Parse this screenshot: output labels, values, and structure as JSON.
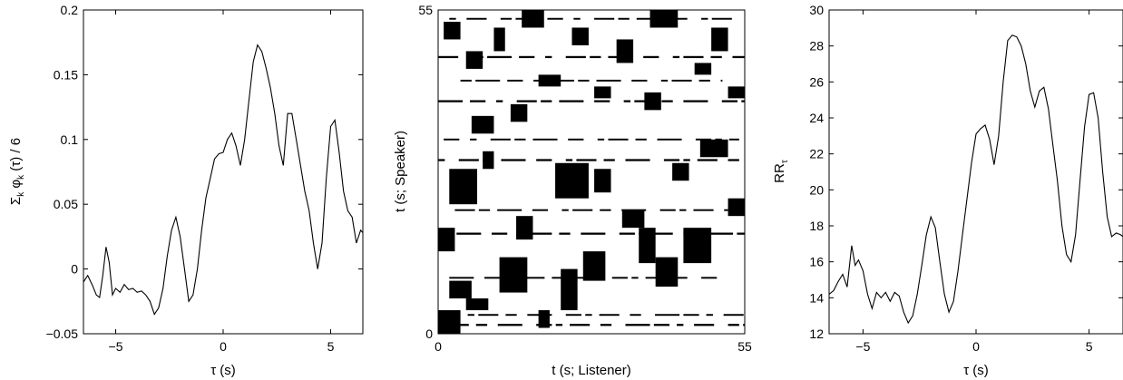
{
  "chart_data": [
    {
      "type": "line",
      "xlabel": "τ (s)",
      "ylabel": "Σk φk (τ) / 6",
      "xlim": [
        -6.5,
        6.5
      ],
      "ylim": [
        -0.05,
        0.2
      ],
      "xticks": [
        -5,
        0,
        5
      ],
      "xtick_labels": [
        "−5",
        "0",
        "5"
      ],
      "yticks": [
        -0.05,
        0,
        0.05,
        0.1,
        0.15,
        0.2
      ],
      "ytick_labels": [
        "−0.05",
        "0",
        "0.05",
        "0.1",
        "0.15",
        "0.2"
      ],
      "color": "#000000",
      "series": [
        {
          "x": [
            -6.5,
            -6.3,
            -6.1,
            -5.9,
            -5.75,
            -5.6,
            -5.45,
            -5.3,
            -5.15,
            -5.0,
            -4.8,
            -4.6,
            -4.4,
            -4.2,
            -4.0,
            -3.8,
            -3.6,
            -3.4,
            -3.2,
            -3.0,
            -2.8,
            -2.6,
            -2.4,
            -2.2,
            -2.0,
            -1.8,
            -1.6,
            -1.4,
            -1.2,
            -1.0,
            -0.8,
            -0.6,
            -0.4,
            -0.2,
            0.0,
            0.2,
            0.4,
            0.6,
            0.8,
            1.0,
            1.2,
            1.4,
            1.6,
            1.8,
            2.0,
            2.2,
            2.4,
            2.6,
            2.8,
            3.0,
            3.2,
            3.4,
            3.6,
            3.8,
            4.0,
            4.2,
            4.4,
            4.6,
            4.8,
            5.0,
            5.2,
            5.4,
            5.6,
            5.8,
            6.0,
            6.2,
            6.4,
            6.5
          ],
          "y": [
            -0.01,
            -0.005,
            -0.012,
            -0.02,
            -0.022,
            -0.005,
            0.017,
            0.005,
            -0.02,
            -0.015,
            -0.018,
            -0.012,
            -0.016,
            -0.015,
            -0.018,
            -0.017,
            -0.02,
            -0.025,
            -0.035,
            -0.03,
            -0.015,
            0.01,
            0.03,
            0.04,
            0.025,
            0.0,
            -0.025,
            -0.02,
            0.0,
            0.03,
            0.055,
            0.07,
            0.085,
            0.089,
            0.09,
            0.1,
            0.105,
            0.095,
            0.08,
            0.1,
            0.13,
            0.16,
            0.173,
            0.168,
            0.155,
            0.14,
            0.12,
            0.095,
            0.08,
            0.12,
            0.12,
            0.1,
            0.08,
            0.06,
            0.045,
            0.02,
            0.0,
            0.02,
            0.07,
            0.11,
            0.115,
            0.09,
            0.06,
            0.045,
            0.04,
            0.02,
            0.03,
            0.028
          ]
        }
      ]
    },
    {
      "type": "heatmap",
      "xlabel": "t (s; Listener)",
      "ylabel": "t (s; Speaker)",
      "xlim": [
        0,
        55
      ],
      "ylim": [
        0,
        55
      ],
      "xtick_labels": [
        "0",
        "55"
      ],
      "ytick_labels": [
        "0",
        "55"
      ],
      "description_of_marks": "binary recurrence plot: black = recurrent",
      "fill": "#000000",
      "blocks": [
        [
          0,
          0,
          4,
          4
        ],
        [
          2,
          6,
          4,
          3
        ],
        [
          5,
          4,
          4,
          2
        ],
        [
          0,
          14,
          3,
          4
        ],
        [
          2,
          22,
          5,
          6
        ],
        [
          11,
          7,
          5,
          6
        ],
        [
          14,
          16,
          3,
          4
        ],
        [
          18,
          1,
          2,
          3
        ],
        [
          22,
          4,
          3,
          7
        ],
        [
          26,
          9,
          4,
          5
        ],
        [
          21,
          23,
          6,
          6
        ],
        [
          28,
          24,
          3,
          4
        ],
        [
          33,
          18,
          4,
          3
        ],
        [
          36,
          12,
          3,
          6
        ],
        [
          39,
          8,
          4,
          5
        ],
        [
          44,
          12,
          5,
          6
        ],
        [
          42,
          26,
          3,
          3
        ],
        [
          47,
          30,
          5,
          3
        ],
        [
          6,
          34,
          4,
          3
        ],
        [
          13,
          36,
          3,
          3
        ],
        [
          18,
          42,
          4,
          2
        ],
        [
          28,
          40,
          3,
          2
        ],
        [
          37,
          38,
          3,
          3
        ],
        [
          46,
          44,
          3,
          2
        ],
        [
          5,
          45,
          3,
          3
        ],
        [
          10,
          48,
          2,
          4
        ],
        [
          24,
          49,
          3,
          3
        ],
        [
          32,
          46,
          3,
          4
        ],
        [
          49,
          48,
          3,
          4
        ],
        [
          1,
          50,
          3,
          3
        ],
        [
          15,
          52,
          4,
          3
        ],
        [
          38,
          52,
          5,
          3
        ],
        [
          52,
          40,
          3,
          2
        ],
        [
          52,
          20,
          3,
          3
        ],
        [
          8,
          28,
          2,
          3
        ]
      ],
      "stripes": [
        [
          0,
          55,
          1.5,
          0.35
        ],
        [
          0,
          55,
          3.2,
          0.3
        ],
        [
          2,
          50,
          9.5,
          0.3
        ],
        [
          0,
          55,
          17.0,
          0.35
        ],
        [
          3,
          52,
          21.0,
          0.3
        ],
        [
          0,
          55,
          29.5,
          0.35
        ],
        [
          1,
          54,
          33.0,
          0.3
        ],
        [
          0,
          55,
          39.5,
          0.35
        ],
        [
          4,
          51,
          43.0,
          0.3
        ],
        [
          0,
          55,
          47.0,
          0.35
        ],
        [
          2,
          53,
          53.5,
          0.3
        ]
      ]
    },
    {
      "type": "line",
      "xlabel": "τ (s)",
      "ylabel": "RRτ",
      "xlim": [
        -6.5,
        6.5
      ],
      "ylim": [
        12,
        30
      ],
      "xticks": [
        -5,
        0,
        5
      ],
      "xtick_labels": [
        "−5",
        "0",
        "5"
      ],
      "yticks": [
        12,
        14,
        16,
        18,
        20,
        22,
        24,
        26,
        28,
        30
      ],
      "ytick_labels": [
        "12",
        "14",
        "16",
        "18",
        "20",
        "22",
        "24",
        "26",
        "28",
        "30"
      ],
      "color": "#000000",
      "series": [
        {
          "x": [
            -6.5,
            -6.3,
            -6.1,
            -5.9,
            -5.7,
            -5.5,
            -5.35,
            -5.2,
            -5.0,
            -4.8,
            -4.6,
            -4.4,
            -4.2,
            -4.0,
            -3.8,
            -3.6,
            -3.4,
            -3.2,
            -3.0,
            -2.8,
            -2.6,
            -2.4,
            -2.2,
            -2.0,
            -1.8,
            -1.6,
            -1.4,
            -1.2,
            -1.0,
            -0.8,
            -0.6,
            -0.4,
            -0.2,
            0.0,
            0.2,
            0.4,
            0.6,
            0.8,
            1.0,
            1.2,
            1.4,
            1.6,
            1.8,
            2.0,
            2.2,
            2.4,
            2.6,
            2.8,
            3.0,
            3.2,
            3.4,
            3.6,
            3.8,
            4.0,
            4.2,
            4.4,
            4.6,
            4.8,
            5.0,
            5.2,
            5.4,
            5.6,
            5.8,
            6.0,
            6.2,
            6.4,
            6.5
          ],
          "y": [
            14.2,
            14.4,
            14.9,
            15.3,
            14.6,
            16.9,
            15.8,
            16.1,
            15.5,
            14.2,
            13.4,
            14.3,
            14.0,
            14.3,
            13.8,
            14.3,
            14.1,
            13.2,
            12.6,
            13.0,
            14.2,
            15.8,
            17.5,
            18.5,
            17.9,
            16.0,
            14.2,
            13.2,
            13.8,
            15.5,
            17.5,
            19.5,
            21.5,
            23.1,
            23.4,
            23.6,
            22.8,
            21.4,
            23.0,
            26.0,
            28.3,
            28.6,
            28.5,
            28.0,
            27.0,
            25.5,
            24.6,
            25.5,
            25.7,
            24.5,
            22.5,
            20.5,
            18.0,
            16.4,
            16.0,
            17.5,
            20.5,
            23.5,
            25.3,
            25.4,
            24.0,
            21.0,
            18.5,
            17.4,
            17.6,
            17.5,
            17.4
          ]
        }
      ]
    }
  ]
}
